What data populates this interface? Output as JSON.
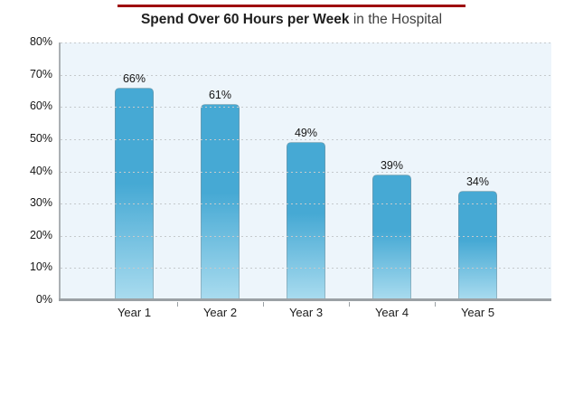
{
  "title": {
    "bold": "Spend Over 60 Hours per Week",
    "regular": " in the Hospital"
  },
  "accent_rule_color": "#9e0c0e",
  "chart_data": {
    "type": "bar",
    "title": "Spend Over 60 Hours per Week in the Hospital",
    "categories": [
      "Year 1",
      "Year 2",
      "Year 3",
      "Year 4",
      "Year 5"
    ],
    "values": [
      66,
      61,
      49,
      39,
      34
    ],
    "data_labels": [
      "66%",
      "61%",
      "49%",
      "39%",
      "34%"
    ],
    "xlabel": "",
    "ylabel": "",
    "ylim": [
      0,
      80
    ],
    "ytick_interval": 10,
    "ytick_labels": [
      "0%",
      "10%",
      "20%",
      "30%",
      "40%",
      "50%",
      "60%",
      "70%",
      "80%"
    ],
    "grid": "horizontal-dotted",
    "legend": "none",
    "colors": {
      "bar_top": "#46a9d4",
      "bar_bottom": "#aadcef",
      "plot_background": "#edf5fb",
      "gridline": "#c5cacd",
      "axis": "#a2a7ab"
    }
  }
}
